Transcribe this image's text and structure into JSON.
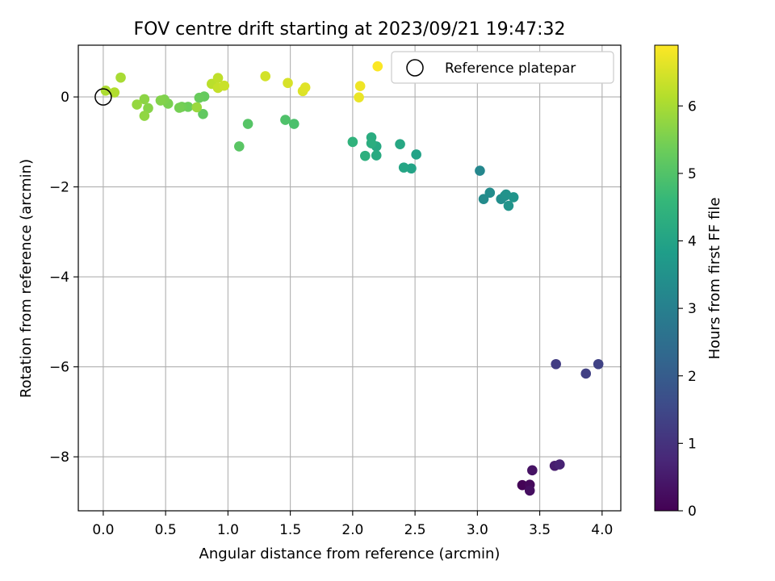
{
  "chart_data": {
    "type": "scatter",
    "title": "FOV centre drift starting at 2023/09/21 19:47:32",
    "xlabel": "Angular distance from reference (arcmin)",
    "ylabel": "Rotation from reference (arcmin)",
    "xlim": [
      -0.2,
      4.15
    ],
    "ylim": [
      -9.2,
      1.15
    ],
    "xticks": [
      0.0,
      0.5,
      1.0,
      1.5,
      2.0,
      2.5,
      3.0,
      3.5,
      4.0
    ],
    "xtick_labels": [
      "0.0",
      "0.5",
      "1.0",
      "1.5",
      "2.0",
      "2.5",
      "3.0",
      "3.5",
      "4.0"
    ],
    "yticks": [
      0,
      -2,
      -4,
      -6,
      -8
    ],
    "ytick_labels": [
      "0",
      "−2",
      "−4",
      "−6",
      "−8"
    ],
    "grid": true,
    "legend": {
      "placement": "top-right",
      "entries": [
        "Reference platepar"
      ]
    },
    "reference_point": {
      "x": 0.0,
      "y": 0.0
    },
    "colorbar": {
      "label": "Hours from first FF file",
      "range": [
        0,
        6.9
      ],
      "ticks": [
        0,
        1,
        2,
        3,
        4,
        5,
        6
      ],
      "tick_labels": [
        "0",
        "1",
        "2",
        "3",
        "4",
        "5",
        "6"
      ],
      "colormap": "viridis"
    },
    "series": [
      {
        "points": [
          {
            "x": 3.36,
            "y": -8.63,
            "h": 0.05
          },
          {
            "x": 3.42,
            "y": -8.62,
            "h": 0.15
          },
          {
            "x": 3.42,
            "y": -8.75,
            "h": 0.25
          },
          {
            "x": 3.44,
            "y": -8.3,
            "h": 0.35
          },
          {
            "x": 3.62,
            "y": -8.2,
            "h": 0.55
          },
          {
            "x": 3.66,
            "y": -8.17,
            "h": 0.65
          },
          {
            "x": 3.63,
            "y": -5.94,
            "h": 1.25
          },
          {
            "x": 3.87,
            "y": -6.15,
            "h": 1.3
          },
          {
            "x": 3.97,
            "y": -5.94,
            "h": 1.35
          },
          {
            "x": 3.02,
            "y": -1.64,
            "h": 3.2
          },
          {
            "x": 3.05,
            "y": -2.27,
            "h": 3.3
          },
          {
            "x": 3.1,
            "y": -2.13,
            "h": 3.35
          },
          {
            "x": 3.19,
            "y": -2.27,
            "h": 3.4
          },
          {
            "x": 3.22,
            "y": -2.2,
            "h": 3.45
          },
          {
            "x": 3.23,
            "y": -2.17,
            "h": 3.5
          },
          {
            "x": 3.25,
            "y": -2.42,
            "h": 3.55
          },
          {
            "x": 3.29,
            "y": -2.23,
            "h": 3.6
          },
          {
            "x": 2.51,
            "y": -1.28,
            "h": 3.95
          },
          {
            "x": 2.47,
            "y": -1.59,
            "h": 4.0
          },
          {
            "x": 2.41,
            "y": -1.57,
            "h": 4.05
          },
          {
            "x": 2.38,
            "y": -1.05,
            "h": 4.1
          },
          {
            "x": 2.19,
            "y": -1.1,
            "h": 4.15
          },
          {
            "x": 2.19,
            "y": -1.3,
            "h": 4.2
          },
          {
            "x": 2.15,
            "y": -0.9,
            "h": 4.25
          },
          {
            "x": 2.15,
            "y": -1.03,
            "h": 4.3
          },
          {
            "x": 2.1,
            "y": -1.31,
            "h": 4.35
          },
          {
            "x": 2.0,
            "y": -1.0,
            "h": 4.45
          },
          {
            "x": 1.53,
            "y": -0.6,
            "h": 4.9
          },
          {
            "x": 1.46,
            "y": -0.51,
            "h": 4.95
          },
          {
            "x": 1.16,
            "y": -0.6,
            "h": 5.05
          },
          {
            "x": 1.09,
            "y": -1.1,
            "h": 5.1
          },
          {
            "x": 0.8,
            "y": -0.38,
            "h": 5.2
          },
          {
            "x": 0.81,
            "y": 0.01,
            "h": 5.25
          },
          {
            "x": 0.77,
            "y": -0.02,
            "h": 5.3
          },
          {
            "x": 0.68,
            "y": -0.22,
            "h": 5.35
          },
          {
            "x": 0.63,
            "y": -0.22,
            "h": 5.4
          },
          {
            "x": 0.61,
            "y": -0.24,
            "h": 5.45
          },
          {
            "x": 0.52,
            "y": -0.15,
            "h": 5.5
          },
          {
            "x": 0.49,
            "y": -0.06,
            "h": 5.55
          },
          {
            "x": 0.46,
            "y": -0.08,
            "h": 5.6
          },
          {
            "x": 0.36,
            "y": -0.25,
            "h": 5.65
          },
          {
            "x": 0.33,
            "y": -0.05,
            "h": 5.7
          },
          {
            "x": 0.33,
            "y": -0.42,
            "h": 5.75
          },
          {
            "x": 0.27,
            "y": -0.17,
            "h": 5.8
          },
          {
            "x": 0.75,
            "y": -0.23,
            "h": 5.85
          },
          {
            "x": 0.14,
            "y": 0.43,
            "h": 6.0
          },
          {
            "x": 0.02,
            "y": 0.14,
            "h": 6.05
          },
          {
            "x": 0.09,
            "y": 0.1,
            "h": 6.1
          },
          {
            "x": 0.87,
            "y": 0.29,
            "h": 6.2
          },
          {
            "x": 0.92,
            "y": 0.42,
            "h": 6.25
          },
          {
            "x": 0.92,
            "y": 0.2,
            "h": 6.3
          },
          {
            "x": 0.97,
            "y": 0.25,
            "h": 6.35
          },
          {
            "x": 1.3,
            "y": 0.46,
            "h": 6.45
          },
          {
            "x": 1.48,
            "y": 0.31,
            "h": 6.5
          },
          {
            "x": 1.6,
            "y": 0.13,
            "h": 6.55
          },
          {
            "x": 1.62,
            "y": 0.21,
            "h": 6.6
          },
          {
            "x": 2.05,
            "y": -0.01,
            "h": 6.7
          },
          {
            "x": 2.06,
            "y": 0.24,
            "h": 6.75
          },
          {
            "x": 2.2,
            "y": 0.68,
            "h": 6.88
          }
        ]
      }
    ]
  }
}
